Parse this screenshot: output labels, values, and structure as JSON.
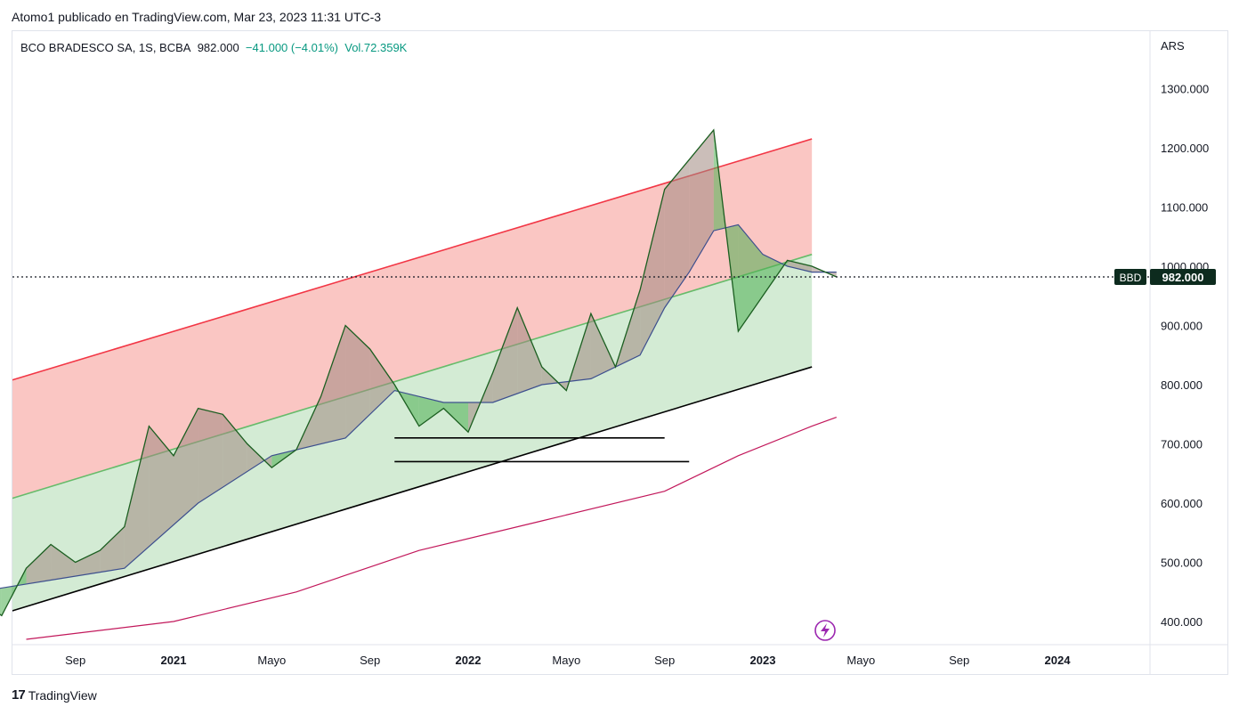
{
  "header": {
    "publish_line": "Atomo1 publicado en TradingView.com, Mar 23, 2023 11:31 UTC-3"
  },
  "legend": {
    "symbol": "BCO BRADESCO SA, 1S, BCBA",
    "price": "982.000",
    "change": "−41.000 (−4.01%)",
    "volume": "Vol.72.359K"
  },
  "footer": {
    "brand": "TradingView",
    "logo_text": "17"
  },
  "colors": {
    "price_line": "#1b5e20",
    "ma_line": "#3d4f8e",
    "long_ma": "#c2185b",
    "channel_top": "#f23645",
    "channel_mid": "#66bb6a",
    "channel_bottom": "#000000",
    "red_zone": "#f7a8a3",
    "green_zone": "#c8e6c9",
    "cloud_up": "#4caf50",
    "cloud_down": "#a1887f",
    "label_bg": "#0d2b1e"
  },
  "chart_data": {
    "type": "line",
    "title": "BCO BRADESCO SA, 1S, BCBA",
    "currency": "ARS",
    "y_axis": {
      "ticks": [
        "1300.000",
        "1200.000",
        "1100.000",
        "1000.000",
        "900.000",
        "800.000",
        "700.000",
        "600.000",
        "500.000",
        "400.000"
      ],
      "tick_values": [
        1300,
        1200,
        1100,
        1000,
        900,
        800,
        700,
        600,
        500,
        400
      ],
      "range": [
        360,
        1400
      ]
    },
    "x_axis": {
      "ticks": [
        "Sep",
        "2021",
        "Mayo",
        "Sep",
        "2022",
        "Mayo",
        "Sep",
        "2023",
        "Mayo",
        "Sep",
        "2024"
      ],
      "tick_dates": [
        "2020-09",
        "2021-01",
        "2021-05",
        "2021-09",
        "2022-01",
        "2022-05",
        "2022-09",
        "2023-01",
        "2023-05",
        "2023-09",
        "2024-01"
      ],
      "bold_ticks": [
        "2021",
        "2022",
        "2023",
        "2024"
      ]
    },
    "last_price": {
      "value": 982,
      "label": "982.000",
      "symbol": "BBD"
    },
    "series": [
      {
        "name": "",
        "role": "price",
        "points": [
          [
            "2020-05",
            440
          ],
          [
            "2020-06",
            410
          ],
          [
            "2020-07",
            490
          ],
          [
            "2020-08",
            530
          ],
          [
            "2020-09",
            500
          ],
          [
            "2020-10",
            520
          ],
          [
            "2020-11",
            560
          ],
          [
            "2020-12",
            730
          ],
          [
            "2021-01",
            680
          ],
          [
            "2021-02",
            760
          ],
          [
            "2021-03",
            750
          ],
          [
            "2021-04",
            700
          ],
          [
            "2021-05",
            660
          ],
          [
            "2021-06",
            690
          ],
          [
            "2021-07",
            780
          ],
          [
            "2021-08",
            900
          ],
          [
            "2021-09",
            860
          ],
          [
            "2021-10",
            800
          ],
          [
            "2021-11",
            730
          ],
          [
            "2021-12",
            760
          ],
          [
            "2022-01",
            720
          ],
          [
            "2022-02",
            820
          ],
          [
            "2022-03",
            930
          ],
          [
            "2022-04",
            830
          ],
          [
            "2022-05",
            790
          ],
          [
            "2022-06",
            920
          ],
          [
            "2022-07",
            830
          ],
          [
            "2022-08",
            960
          ],
          [
            "2022-09",
            1130
          ],
          [
            "2022-10",
            1180
          ],
          [
            "2022-11",
            1230
          ],
          [
            "2022-12",
            890
          ],
          [
            "2023-01",
            950
          ],
          [
            "2023-02",
            1010
          ],
          [
            "2023-03",
            1000
          ],
          [
            "2023-04",
            982
          ]
        ]
      },
      {
        "name": "",
        "role": "moving-average",
        "points": [
          [
            "2020-05",
            450
          ],
          [
            "2020-08",
            470
          ],
          [
            "2020-11",
            490
          ],
          [
            "2021-02",
            600
          ],
          [
            "2021-05",
            680
          ],
          [
            "2021-08",
            710
          ],
          [
            "2021-10",
            790
          ],
          [
            "2021-12",
            770
          ],
          [
            "2022-02",
            770
          ],
          [
            "2022-04",
            800
          ],
          [
            "2022-06",
            810
          ],
          [
            "2022-08",
            850
          ],
          [
            "2022-09",
            930
          ],
          [
            "2022-10",
            990
          ],
          [
            "2022-11",
            1060
          ],
          [
            "2022-12",
            1070
          ],
          [
            "2023-01",
            1020
          ],
          [
            "2023-02",
            1000
          ],
          [
            "2023-03",
            990
          ],
          [
            "2023-04",
            990
          ]
        ]
      },
      {
        "name": "",
        "role": "long-moving-average",
        "points": [
          [
            "2020-07",
            370
          ],
          [
            "2021-01",
            400
          ],
          [
            "2021-06",
            450
          ],
          [
            "2021-11",
            520
          ],
          [
            "2022-04",
            570
          ],
          [
            "2022-09",
            620
          ],
          [
            "2022-12",
            680
          ],
          [
            "2023-03",
            730
          ],
          [
            "2023-04",
            745
          ]
        ]
      }
    ],
    "channel": {
      "top": [
        [
          "2020-05",
          790
        ],
        [
          "2023-03",
          1215
        ]
      ],
      "middle": [
        [
          "2020-05",
          590
        ],
        [
          "2023-03",
          1020
        ]
      ],
      "bottom": [
        [
          "2020-05",
          400
        ],
        [
          "2023-03",
          830
        ]
      ]
    },
    "horizontal_lines": [
      {
        "from": "2021-10",
        "to": "2022-09",
        "value": 710
      },
      {
        "from": "2021-10",
        "to": "2022-10",
        "value": 670
      }
    ]
  }
}
